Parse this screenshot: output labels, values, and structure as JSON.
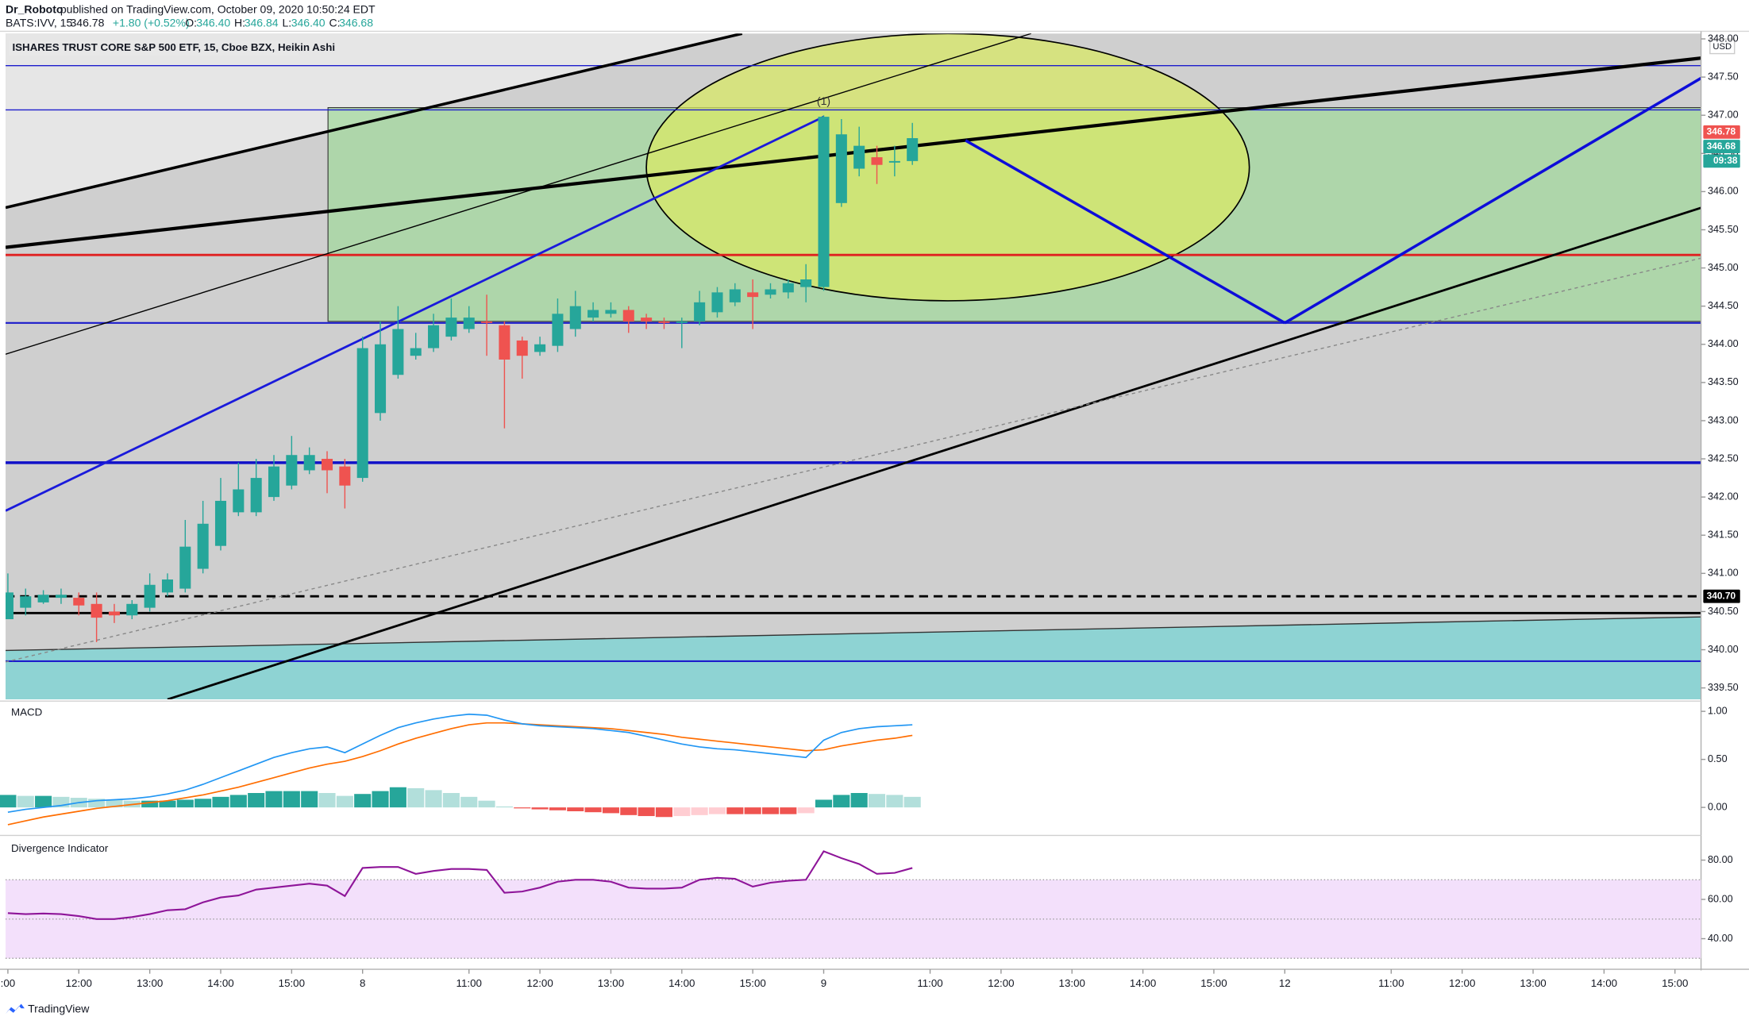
{
  "header": {
    "author": "Dr_Roboto",
    "published": "published on TradingView.com, October 09, 2020 10:50:24 EDT",
    "symbol": "BATS:IVV, 15",
    "last": "346.78",
    "change": "+1.80 (+0.52%)",
    "ohlc": [
      {
        "label": "O:",
        "value": "346.40"
      },
      {
        "label": "H:",
        "value": "346.84"
      },
      {
        "label": "L:",
        "value": "346.40"
      },
      {
        "label": "C:",
        "value": "346.68"
      }
    ]
  },
  "footer": {
    "brand": "TradingView"
  },
  "chart_data": [
    {
      "type": "candlestick",
      "title": "ISHARES TRUST CORE S&P 500 ETF, 15, Cboe BZX, Heikin Ashi",
      "currency": "USD",
      "up_color": "#26a69a",
      "down_color": "#ef5350",
      "open": [
        340.4,
        340.55,
        340.62,
        340.68,
        340.68,
        340.6,
        340.5,
        340.45,
        340.55,
        340.75,
        340.8,
        341.06,
        341.36,
        341.8,
        341.8,
        342.0,
        342.15,
        342.35,
        342.5,
        342.4,
        342.25,
        343.1,
        343.6,
        343.85,
        343.95,
        344.1,
        344.2,
        344.3,
        344.25,
        344.05,
        343.9,
        343.98,
        344.2,
        344.35,
        344.4,
        344.45,
        344.35,
        344.3,
        344.28,
        344.3,
        344.42,
        344.55,
        344.68,
        344.65,
        344.68,
        344.75,
        344.75,
        345.85,
        346.3,
        346.45,
        346.38,
        346.4
      ],
      "high": [
        341.0,
        340.8,
        340.78,
        340.8,
        340.75,
        340.75,
        340.6,
        340.65,
        341.0,
        341.0,
        341.7,
        341.95,
        342.25,
        342.45,
        342.5,
        342.55,
        342.8,
        342.65,
        342.6,
        342.5,
        344.1,
        344.3,
        344.5,
        344.15,
        344.4,
        344.6,
        344.5,
        344.65,
        344.3,
        344.1,
        344.1,
        344.6,
        344.7,
        344.55,
        344.55,
        344.5,
        344.4,
        344.35,
        344.35,
        344.7,
        344.75,
        344.8,
        344.85,
        344.8,
        344.85,
        345.05,
        347.0,
        346.95,
        346.85,
        346.6,
        346.6,
        346.9
      ],
      "low": [
        340.4,
        340.45,
        340.6,
        340.6,
        340.45,
        340.1,
        340.35,
        340.4,
        340.5,
        340.7,
        340.75,
        341.0,
        341.3,
        341.75,
        341.75,
        341.95,
        342.1,
        342.3,
        342.05,
        341.85,
        342.2,
        343.0,
        343.55,
        343.8,
        343.9,
        344.05,
        344.15,
        343.85,
        342.9,
        343.55,
        343.85,
        343.9,
        344.1,
        344.3,
        344.35,
        344.15,
        344.2,
        344.2,
        343.95,
        344.25,
        344.35,
        344.5,
        344.2,
        344.6,
        344.6,
        344.55,
        344.7,
        345.8,
        346.2,
        346.1,
        346.2,
        346.35
      ],
      "close": [
        340.75,
        340.7,
        340.72,
        340.72,
        340.58,
        340.42,
        340.45,
        340.6,
        340.85,
        340.92,
        341.35,
        341.65,
        341.95,
        342.1,
        342.25,
        342.4,
        342.55,
        342.55,
        342.35,
        342.15,
        343.95,
        344.0,
        344.2,
        343.95,
        344.25,
        344.35,
        344.35,
        344.28,
        343.8,
        343.85,
        344.0,
        344.4,
        344.5,
        344.45,
        344.45,
        344.3,
        344.3,
        344.28,
        344.3,
        344.55,
        344.68,
        344.72,
        344.62,
        344.72,
        344.8,
        344.85,
        346.98,
        346.75,
        346.6,
        346.35,
        346.4,
        346.7
      ],
      "xlim": [
        -0.13,
        95.47
      ],
      "xticks": [
        {
          "value": 0,
          "label": ":00"
        },
        {
          "value": 4,
          "label": "12:00"
        },
        {
          "value": 8,
          "label": "13:00"
        },
        {
          "value": 12,
          "label": "14:00"
        },
        {
          "value": 16,
          "label": "15:00"
        },
        {
          "value": 20,
          "label": "8"
        },
        {
          "value": 26,
          "label": "11:00"
        },
        {
          "value": 30,
          "label": "12:00"
        },
        {
          "value": 34,
          "label": "13:00"
        },
        {
          "value": 38,
          "label": "14:00"
        },
        {
          "value": 42,
          "label": "15:00"
        },
        {
          "value": 46,
          "label": "9"
        },
        {
          "value": 52,
          "label": "11:00"
        },
        {
          "value": 56,
          "label": "12:00"
        },
        {
          "value": 60,
          "label": "13:00"
        },
        {
          "value": 64,
          "label": "14:00"
        },
        {
          "value": 68,
          "label": "15:00"
        },
        {
          "value": 72,
          "label": "12"
        },
        {
          "value": 78,
          "label": "11:00"
        },
        {
          "value": 82,
          "label": "12:00"
        },
        {
          "value": 86,
          "label": "13:00"
        },
        {
          "value": 90,
          "label": "14:00"
        },
        {
          "value": 94,
          "label": "15:00"
        }
      ],
      "ylim": [
        339.35,
        348.07
      ],
      "yticks": [
        {
          "value": 339.5,
          "label": "339.50"
        },
        {
          "value": 340,
          "label": "340.00"
        },
        {
          "value": 340.5,
          "label": "340.50"
        },
        {
          "value": 341,
          "label": "341.00"
        },
        {
          "value": 341.5,
          "label": "341.50"
        },
        {
          "value": 342,
          "label": "342.00"
        },
        {
          "value": 342.5,
          "label": "342.50"
        },
        {
          "value": 343,
          "label": "343.00"
        },
        {
          "value": 343.5,
          "label": "343.50"
        },
        {
          "value": 344,
          "label": "344.00"
        },
        {
          "value": 344.5,
          "label": "344.50"
        },
        {
          "value": 345,
          "label": "345.00"
        },
        {
          "value": 345.5,
          "label": "345.50"
        },
        {
          "value": 346,
          "label": "346.00"
        },
        {
          "value": 346.5,
          "label": "346.50"
        },
        {
          "value": 347,
          "label": "347.00"
        },
        {
          "value": 347.5,
          "label": "347.50"
        },
        {
          "value": 348,
          "label": "348.00"
        }
      ],
      "price_tags": [
        {
          "value": 346.78,
          "label": "346.78",
          "color": "#ef5350"
        },
        {
          "value": 346.68,
          "label": "346.68",
          "color": "#26a69a",
          "countdown": "09:38"
        },
        {
          "value": 340.7,
          "label": "340.70",
          "color": "#000000"
        }
      ],
      "drawings": {
        "zone": {
          "from": 18.05,
          "to": 95.47,
          "top": 347.1,
          "bottom": 344.3,
          "color": "#9fd89a"
        },
        "ellipse": {
          "center": 53,
          "price": 346.32,
          "rx": 17,
          "ry": 1.75,
          "color": "#d8e866"
        },
        "levels": [
          {
            "price": 347.65,
            "color": "#1c1ccc",
            "width": 1
          },
          {
            "price": 347.07,
            "color": "#1c1ccc",
            "width": 1
          },
          {
            "price": 345.17,
            "color": "#e02020",
            "width": 2
          },
          {
            "price": 344.28,
            "color": "#1c1ccc",
            "width": 1.5
          },
          {
            "price": 342.45,
            "color": "#1010c8",
            "width": 2.5
          },
          {
            "price": 340.7,
            "color": "#000000",
            "width": 2,
            "dash": "8,5"
          },
          {
            "price": 340.48,
            "color": "#000000",
            "width": 2
          },
          {
            "price": 339.85,
            "color": "#1c1ccc",
            "width": 1.5
          }
        ],
        "lines": [
          {
            "from": [
              -0.13,
              345.27
            ],
            "to": [
              95.5,
              347.75
            ],
            "color": "#000000",
            "width": 3
          },
          {
            "from": [
              -0.13,
              345.79
            ],
            "to": [
              41.4,
              348.07
            ],
            "color": "#000000",
            "width": 2.5
          },
          {
            "from": [
              -0.13,
              343.87
            ],
            "to": [
              57.7,
              348.07
            ],
            "color": "#000000",
            "width": 1
          },
          {
            "from": [
              -0.13,
              339.99
            ],
            "to": [
              95.5,
              340.43
            ],
            "color": "#333333",
            "width": 1
          },
          {
            "from": [
              9,
              339.35
            ],
            "to": [
              95.5,
              345.79
            ],
            "color": "#000000",
            "width": 2
          },
          {
            "from": [
              -0.13,
              341.82
            ],
            "to": [
              46,
              346.98
            ],
            "color": "#1a1adb",
            "width": 2
          },
          {
            "from": [
              54,
              346.67
            ],
            "to": [
              72,
              344.28
            ],
            "color": "#0d0dd9",
            "width": 2.5
          },
          {
            "from": [
              72,
              344.28
            ],
            "to": [
              95.5,
              347.49
            ],
            "color": "#0d0dd9",
            "width": 2.5
          },
          {
            "from": [
              -0.13,
              339.84
            ],
            "to": [
              95.5,
              345.13
            ],
            "color": "#888888",
            "width": 1,
            "dash": "3,3"
          }
        ],
        "wave_label": {
          "text": "(1)",
          "at": 46
        }
      }
    },
    {
      "type": "macd",
      "title": "MACD",
      "ylim": [
        -0.28,
        1.09
      ],
      "yticks": [
        {
          "value": 0,
          "label": "0.00"
        },
        {
          "value": 0.5,
          "label": "0.50"
        },
        {
          "value": 1,
          "label": "1.00"
        }
      ],
      "macd_line": {
        "color": "#2196f3",
        "values": [
          -0.05,
          -0.02,
          0.0,
          0.02,
          0.05,
          0.07,
          0.08,
          0.09,
          0.11,
          0.14,
          0.18,
          0.24,
          0.31,
          0.38,
          0.45,
          0.52,
          0.57,
          0.61,
          0.63,
          0.57,
          0.66,
          0.75,
          0.83,
          0.88,
          0.92,
          0.95,
          0.97,
          0.96,
          0.91,
          0.87,
          0.85,
          0.84,
          0.83,
          0.82,
          0.8,
          0.78,
          0.74,
          0.7,
          0.66,
          0.63,
          0.61,
          0.6,
          0.58,
          0.56,
          0.54,
          0.52,
          0.7,
          0.78,
          0.82,
          0.84,
          0.85,
          0.86
        ]
      },
      "signal_line": {
        "color": "#ff6d00",
        "values": [
          -0.18,
          -0.14,
          -0.1,
          -0.07,
          -0.04,
          -0.01,
          0.01,
          0.03,
          0.05,
          0.07,
          0.1,
          0.13,
          0.17,
          0.21,
          0.26,
          0.31,
          0.36,
          0.41,
          0.45,
          0.48,
          0.53,
          0.59,
          0.66,
          0.72,
          0.77,
          0.82,
          0.86,
          0.88,
          0.88,
          0.87,
          0.86,
          0.85,
          0.84,
          0.83,
          0.82,
          0.8,
          0.78,
          0.76,
          0.73,
          0.71,
          0.69,
          0.67,
          0.65,
          0.63,
          0.61,
          0.59,
          0.6,
          0.64,
          0.67,
          0.7,
          0.72,
          0.75
        ]
      },
      "histogram": {
        "palette": {
          "up_rising": "#26a69a",
          "up_falling": "#b2dfdb",
          "down_falling": "#ef5350",
          "down_rising": "#ffcdd2"
        },
        "values": [
          0.13,
          0.12,
          0.12,
          0.11,
          0.1,
          0.09,
          0.08,
          0.07,
          0.07,
          0.07,
          0.08,
          0.09,
          0.11,
          0.13,
          0.15,
          0.17,
          0.17,
          0.17,
          0.15,
          0.12,
          0.14,
          0.17,
          0.21,
          0.2,
          0.18,
          0.15,
          0.11,
          0.07,
          0.01,
          -0.01,
          -0.02,
          -0.03,
          -0.04,
          -0.05,
          -0.06,
          -0.08,
          -0.09,
          -0.1,
          -0.09,
          -0.08,
          -0.07,
          -0.07,
          -0.07,
          -0.07,
          -0.07,
          -0.06,
          0.08,
          0.13,
          0.15,
          0.14,
          0.13,
          0.11
        ]
      }
    },
    {
      "type": "line",
      "title": "Divergence Indicator",
      "ylim": [
        25,
        92
      ],
      "color": "#8e1599",
      "yticks": [
        {
          "value": 40,
          "label": "40.00"
        },
        {
          "value": 60,
          "label": "60.00"
        },
        {
          "value": 80,
          "label": "80.00"
        }
      ],
      "band": [
        30,
        70
      ],
      "band_color": "#f3e0fb",
      "midline": 50,
      "values": [
        53,
        52.5,
        52.8,
        52.5,
        51.5,
        50,
        50,
        51,
        52.5,
        54.5,
        55,
        58.5,
        61,
        62,
        65,
        66,
        67,
        68,
        67,
        61.7,
        76,
        76.5,
        76.5,
        73,
        74.5,
        75.5,
        75.5,
        75,
        63.4,
        64,
        66,
        69,
        70,
        70,
        69,
        66,
        65.5,
        65.5,
        66,
        70,
        71,
        70.5,
        66.5,
        68.5,
        69.5,
        70,
        84.5,
        81,
        78,
        73,
        73.5,
        76
      ]
    }
  ]
}
